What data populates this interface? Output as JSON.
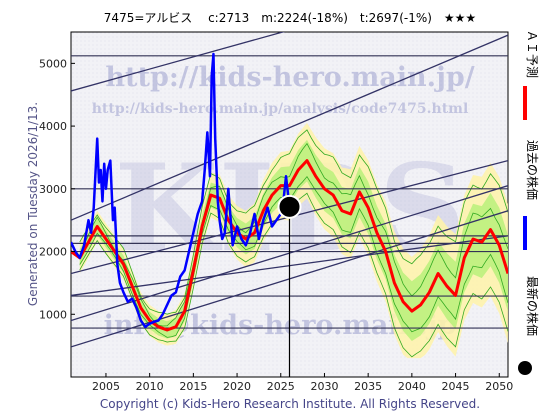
{
  "chart_data": {
    "type": "line",
    "title": "7475=アルビス　 c:2713　m:2224(-18%)　t:2697(-1%)　★★★",
    "watermark_url": "http://kids-hero.main.jp/",
    "watermark_url2": "http://kids-hero.main.jp/analysis/code7475.html",
    "watermark_big": "KIDS",
    "watermark_email": "info@kids-hero.main.jp",
    "generated": "Generated on Tuesday 2026/1/13.",
    "footer": "Copyright (c) Kids-Hero Research Institute. All Rights Reserved.",
    "xlim": [
      2001,
      2051
    ],
    "ylim": [
      0,
      5500
    ],
    "x_ticks": [
      2005,
      2010,
      2015,
      2020,
      2025,
      2030,
      2035,
      2040,
      2045,
      2050
    ],
    "y_ticks": [
      1000,
      2000,
      3000,
      4000,
      5000
    ],
    "legend": [
      {
        "label": "ＡＩ予測",
        "color": "#ff0000"
      },
      {
        "label": "過去の株価",
        "color": "#0000ff"
      },
      {
        "label": "最新の株価",
        "color": "#000000"
      }
    ],
    "current_point": {
      "x": 2026.0,
      "y": 2713
    },
    "horizontal_lines": [
      5120,
      3000,
      2250,
      2130,
      2000,
      1290,
      780
    ],
    "trend_lines": [
      {
        "x1": 2001,
        "y1": 4560,
        "x2": 2051,
        "y2": 6500
      },
      {
        "x1": 2001,
        "y1": 2500,
        "x2": 2051,
        "y2": 5450
      },
      {
        "x1": 2001,
        "y1": 1650,
        "x2": 2051,
        "y2": 3450
      },
      {
        "x1": 2001,
        "y1": 1300,
        "x2": 2051,
        "y2": 2250
      },
      {
        "x1": 2001,
        "y1": 900,
        "x2": 2051,
        "y2": 3050
      },
      {
        "x1": 2001,
        "y1": 480,
        "x2": 2051,
        "y2": 2650
      }
    ],
    "series": [
      {
        "name": "過去の株価",
        "color": "#0000ff",
        "x": [
          2001,
          2001.5,
          2002,
          2002.5,
          2003,
          2003.3,
          2003.6,
          2004,
          2004.2,
          2004.4,
          2004.6,
          2004.8,
          2005,
          2005.2,
          2005.5,
          2005.8,
          2006,
          2006.3,
          2006.6,
          2007,
          2007.5,
          2008,
          2008.5,
          2009,
          2009.5,
          2010,
          2010.5,
          2011,
          2011.5,
          2012,
          2012.5,
          2013,
          2013.5,
          2014,
          2014.5,
          2015,
          2015.5,
          2016,
          2016.3,
          2016.6,
          2016.9,
          2017.1,
          2017.3,
          2017.5,
          2017.8,
          2018,
          2018.3,
          2018.6,
          2019,
          2019.5,
          2020,
          2020.5,
          2021,
          2021.5,
          2022,
          2022.5,
          2023,
          2023.5,
          2024,
          2024.5,
          2025,
          2025.3,
          2025.6,
          2026
        ],
        "y": [
          2150,
          2000,
          1900,
          2100,
          2500,
          2300,
          2700,
          3800,
          3100,
          3300,
          2800,
          3400,
          3000,
          3300,
          3450,
          2500,
          2700,
          1800,
          1500,
          1350,
          1200,
          1250,
          1100,
          900,
          800,
          850,
          880,
          900,
          1000,
          1150,
          1300,
          1350,
          1600,
          1700,
          2000,
          2300,
          2600,
          2800,
          3300,
          3900,
          3200,
          4800,
          5150,
          3800,
          2800,
          2500,
          2200,
          2300,
          3000,
          2100,
          2400,
          2200,
          2100,
          2300,
          2600,
          2200,
          2500,
          2700,
          2400,
          2500,
          2600,
          2800,
          3200,
          2713
        ]
      },
      {
        "name": "ＡＩ予測",
        "color": "#ff0000",
        "x": [
          2001,
          2002,
          2003,
          2004,
          2005,
          2006,
          2007,
          2008,
          2009,
          2010,
          2011,
          2012,
          2013,
          2014,
          2015,
          2016,
          2017,
          2018,
          2019,
          2020,
          2021,
          2022,
          2023,
          2024,
          2025,
          2026,
          2027,
          2028,
          2029,
          2030,
          2031,
          2032,
          2033,
          2034,
          2035,
          2036,
          2037,
          2038,
          2039,
          2040,
          2041,
          2042,
          2043,
          2044,
          2045,
          2046,
          2047,
          2048,
          2049,
          2050,
          2051
        ],
        "y": [
          2000,
          1900,
          2150,
          2400,
          2200,
          2000,
          1800,
          1450,
          1100,
          900,
          800,
          750,
          800,
          1050,
          1700,
          2400,
          2900,
          2850,
          2500,
          2300,
          2200,
          2300,
          2650,
          2900,
          3050,
          3050,
          3300,
          3450,
          3200,
          3000,
          2900,
          2650,
          2600,
          2950,
          2700,
          2300,
          2000,
          1500,
          1200,
          1050,
          1150,
          1350,
          1650,
          1450,
          1300,
          1900,
          2200,
          2150,
          2350,
          2100,
          1650
        ]
      }
    ]
  }
}
